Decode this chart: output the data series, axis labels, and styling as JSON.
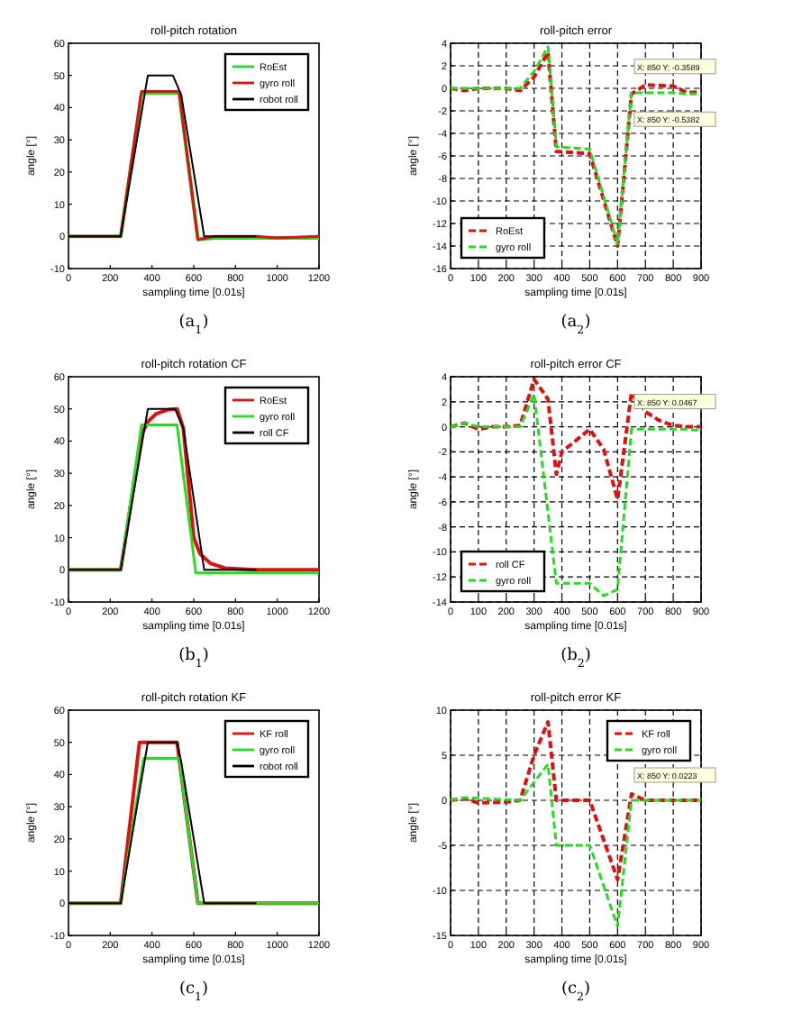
{
  "chart_data": [
    {
      "type": "line",
      "title": "roll-pitch rotation",
      "xlabel": "sampling time [0.01s]",
      "ylabel": "angle [°]",
      "xlim": [
        0,
        1200
      ],
      "xticks": [
        0,
        200,
        400,
        600,
        800,
        1000,
        1200
      ],
      "ylim": [
        -10,
        60
      ],
      "yticks": [
        -10,
        0,
        10,
        20,
        30,
        40,
        50,
        60
      ],
      "legend": "top right",
      "line_style": "solid",
      "annotations": [
        "(a$_{1}$)"
      ],
      "series": [
        {
          "name": "RoEst",
          "color": "#22dd22",
          "x": [
            0,
            250,
            350,
            530,
            620,
            700,
            1200
          ],
          "values": [
            0,
            0,
            44.5,
            44.5,
            -1,
            -0.5,
            -0.5
          ]
        },
        {
          "name": "gyro roll",
          "color": "#e01010",
          "x": [
            0,
            250,
            350,
            530,
            620,
            700,
            900,
            1000,
            1200
          ],
          "values": [
            0,
            0,
            45,
            45,
            -1,
            0,
            0,
            -0.5,
            0
          ]
        },
        {
          "name": "robot roll",
          "color": "#000000",
          "x": [
            0,
            250,
            380,
            500,
            540,
            650,
            900
          ],
          "values": [
            0,
            0,
            50,
            50,
            44,
            0,
            0
          ]
        }
      ]
    },
    {
      "type": "line",
      "title": "roll-pitch error",
      "xlabel": "sampling time [0.01s]",
      "ylabel": "angle [°]",
      "xlim": [
        0,
        900
      ],
      "xticks": [
        0,
        100,
        200,
        300,
        400,
        500,
        600,
        700,
        800,
        900
      ],
      "ylim": [
        -16,
        4
      ],
      "yticks": [
        -16,
        -14,
        -12,
        -10,
        -8,
        -6,
        -4,
        -2,
        0,
        2,
        4
      ],
      "grid": true,
      "legend": "bottom left",
      "line_style": "dashed",
      "annotations": [
        "(a$_{2}$)",
        "X: 850 Y: -0.3589",
        "X: 850 Y: -0.5382"
      ],
      "series": [
        {
          "name": "RoEst",
          "color": "#e01010",
          "x": [
            0,
            50,
            100,
            150,
            200,
            250,
            300,
            350,
            380,
            500,
            600,
            650,
            700,
            800,
            850,
            900
          ],
          "values": [
            0,
            -0.2,
            0,
            0,
            0,
            -0.2,
            1,
            3.2,
            -5.6,
            -5.8,
            -14,
            -0.5,
            0.3,
            0.2,
            -0.4,
            -0.3
          ]
        },
        {
          "name": "gyro roll",
          "color": "#22dd22",
          "x": [
            0,
            50,
            100,
            150,
            200,
            250,
            300,
            350,
            380,
            500,
            600,
            650,
            700,
            800,
            850,
            900
          ],
          "values": [
            0,
            0,
            0,
            0,
            0,
            0,
            1.5,
            3.7,
            -5.2,
            -5.4,
            -13.8,
            -0.4,
            -0.4,
            -0.4,
            -0.5,
            -0.5
          ]
        }
      ]
    },
    {
      "type": "line",
      "title": "roll-pitch rotation CF",
      "xlabel": "sampling time [0.01s]",
      "ylabel": "angle [°]",
      "xlim": [
        0,
        1200
      ],
      "xticks": [
        0,
        200,
        400,
        600,
        800,
        1000,
        1200
      ],
      "ylim": [
        -10,
        60
      ],
      "yticks": [
        -10,
        0,
        10,
        20,
        30,
        40,
        50,
        60
      ],
      "legend": "top right",
      "line_style": "solid",
      "annotations": [
        "(b$_{1}$)"
      ],
      "series": [
        {
          "name": "RoEst",
          "color": "#e01010",
          "x": [
            0,
            250,
            350,
            380,
            420,
            480,
            520,
            550,
            600,
            630,
            680,
            750,
            900,
            1200
          ],
          "values": [
            0,
            0,
            42,
            46,
            48.5,
            49.8,
            50,
            44,
            10,
            5,
            2,
            0.5,
            0,
            0
          ]
        },
        {
          "name": "gyro roll",
          "color": "#22dd22",
          "x": [
            0,
            250,
            350,
            520,
            610,
            700,
            1200
          ],
          "values": [
            0,
            0,
            45,
            45,
            -1,
            -1,
            -1
          ]
        },
        {
          "name": "roll CF",
          "color": "#000000",
          "x": [
            0,
            250,
            380,
            510,
            550,
            650,
            900
          ],
          "values": [
            0,
            0,
            50,
            50,
            44,
            0,
            0
          ]
        }
      ]
    },
    {
      "type": "line",
      "title": "roll-pitch error CF",
      "xlabel": "sampling time [0.01s]",
      "ylabel": "angle [°]",
      "xlim": [
        0,
        900
      ],
      "xticks": [
        0,
        100,
        200,
        300,
        400,
        500,
        600,
        700,
        800,
        900
      ],
      "ylim": [
        -14,
        4
      ],
      "yticks": [
        -14,
        -12,
        -10,
        -8,
        -6,
        -4,
        -2,
        0,
        2,
        4
      ],
      "grid": true,
      "legend": "bottom left",
      "line_style": "dashed",
      "annotations": [
        "(b$_{2}$)",
        "X: 850 Y: 0.0467"
      ],
      "series": [
        {
          "name": "roll CF",
          "color": "#e01010",
          "x": [
            0,
            50,
            100,
            150,
            200,
            250,
            300,
            350,
            380,
            400,
            500,
            550,
            600,
            650,
            700,
            750,
            800,
            850,
            900
          ],
          "values": [
            0,
            0.3,
            -0.2,
            0,
            0,
            0.1,
            3.8,
            2.2,
            -3.8,
            -2,
            -0.2,
            -1.8,
            -5.8,
            2.7,
            1.2,
            0.5,
            0.1,
            0,
            0
          ]
        },
        {
          "name": "gyro roll",
          "color": "#22dd22",
          "x": [
            0,
            50,
            100,
            150,
            200,
            250,
            300,
            380,
            500,
            550,
            600,
            650,
            850,
            900
          ],
          "values": [
            0,
            0.3,
            0,
            0,
            0,
            0,
            2.6,
            -12.5,
            -12.5,
            -13.5,
            -13,
            -0.2,
            -0.2,
            -0.3
          ]
        }
      ]
    },
    {
      "type": "line",
      "title": "roll-pitch rotation KF",
      "xlabel": "sampling time [0.01s]",
      "ylabel": "angle [°]",
      "xlim": [
        0,
        1200
      ],
      "xticks": [
        0,
        200,
        400,
        600,
        800,
        1000,
        1200
      ],
      "ylim": [
        -10,
        60
      ],
      "yticks": [
        -10,
        0,
        10,
        20,
        30,
        40,
        50,
        60
      ],
      "legend": "top right",
      "line_style": "solid",
      "annotations": [
        "(c$_{1}$)"
      ],
      "series": [
        {
          "name": "KF roll",
          "color": "#e01010",
          "x": [
            0,
            250,
            340,
            520,
            620,
            1200
          ],
          "values": [
            0,
            0,
            50,
            50,
            0,
            0
          ]
        },
        {
          "name": "gyro roll",
          "color": "#22dd22",
          "x": [
            0,
            250,
            360,
            530,
            620,
            1200
          ],
          "values": [
            0,
            0,
            45,
            45,
            0,
            0
          ]
        },
        {
          "name": "robot roll",
          "color": "#000000",
          "x": [
            0,
            250,
            380,
            520,
            540,
            650,
            900
          ],
          "values": [
            0,
            0,
            50,
            50,
            44,
            0,
            0
          ]
        }
      ]
    },
    {
      "type": "line",
      "title": "roll-pitch error KF",
      "xlabel": "sampling time [0.01s]",
      "ylabel": "angle [°]",
      "xlim": [
        0,
        900
      ],
      "xticks": [
        0,
        100,
        200,
        300,
        400,
        500,
        600,
        700,
        800,
        900
      ],
      "ylim": [
        -15,
        10
      ],
      "yticks": [
        -15,
        -10,
        -5,
        0,
        5,
        10
      ],
      "grid": true,
      "legend": "top right",
      "line_style": "dashed",
      "annotations": [
        "(c$_{2}$)",
        "X: 850 Y: 0.0223"
      ],
      "series": [
        {
          "name": "KF roll",
          "color": "#e01010",
          "x": [
            0,
            50,
            100,
            200,
            250,
            300,
            350,
            380,
            500,
            600,
            650,
            700,
            850,
            900
          ],
          "values": [
            0,
            0.2,
            -0.3,
            -0.2,
            0,
            5,
            8.7,
            0,
            0,
            -8.8,
            0.7,
            0,
            0,
            0
          ]
        },
        {
          "name": "gyro roll",
          "color": "#22dd22",
          "x": [
            0,
            50,
            250,
            350,
            380,
            500,
            600,
            650,
            850,
            900
          ],
          "values": [
            0,
            0.3,
            0,
            4,
            -5,
            -5,
            -14,
            0,
            0,
            0
          ]
        }
      ]
    }
  ]
}
